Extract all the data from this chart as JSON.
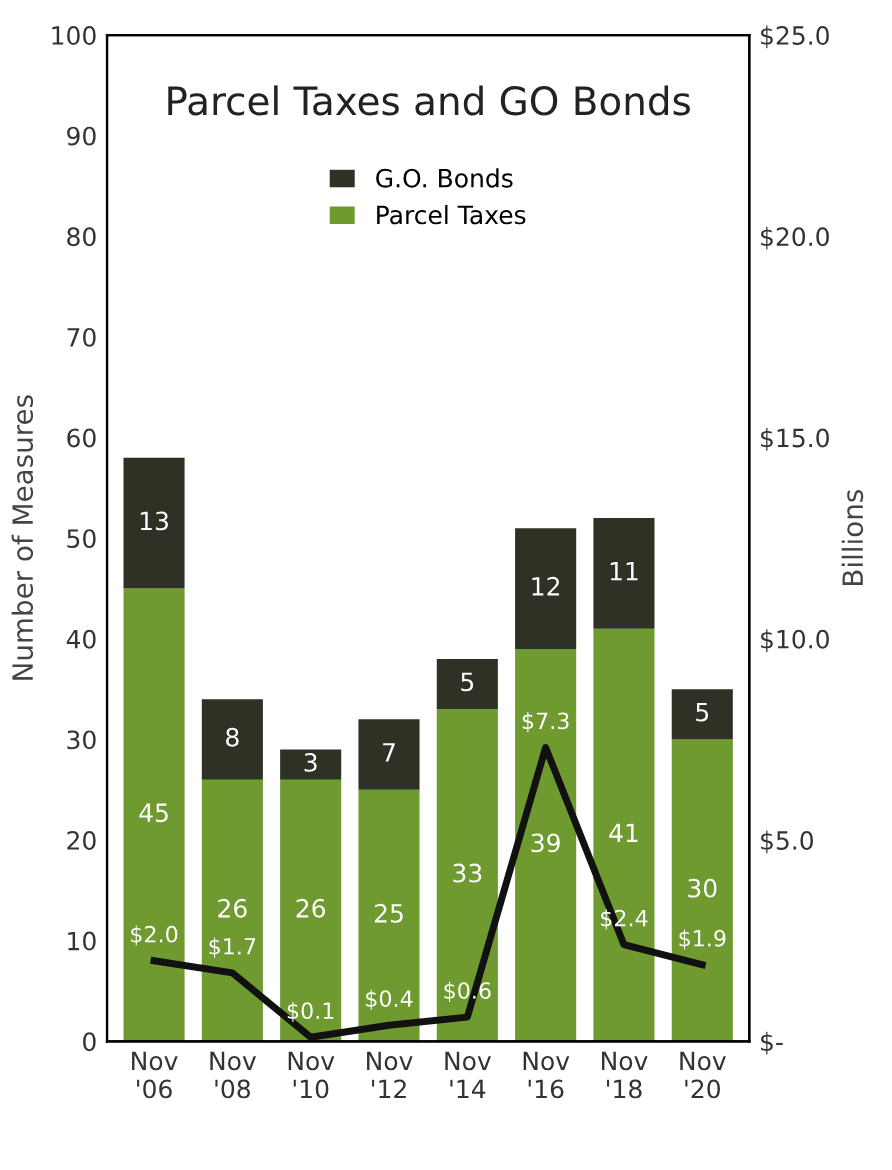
{
  "chart_data": {
    "type": "bar",
    "title": "Parcel Taxes and GO Bonds",
    "ylabel": "Number of Measures",
    "y2label": "Billions",
    "categories": [
      "Nov\n'06",
      "Nov\n'08",
      "Nov\n'10",
      "Nov\n'12",
      "Nov\n'14",
      "Nov\n'16",
      "Nov\n'18",
      "Nov\n'20"
    ],
    "stacked": true,
    "legend": "top",
    "grid": false,
    "ylim": [
      0,
      100
    ],
    "yticks": [
      0,
      10,
      20,
      30,
      40,
      50,
      60,
      70,
      80,
      90,
      100
    ],
    "y2lim": [
      0,
      25
    ],
    "y2ticks": [
      {
        "value": 0,
        "label": "$-"
      },
      {
        "value": 5,
        "label": "$5.0"
      },
      {
        "value": 10,
        "label": "$10.0"
      },
      {
        "value": 15,
        "label": "$15.0"
      },
      {
        "value": 20,
        "label": "$20.0"
      },
      {
        "value": 25,
        "label": "$25.0"
      }
    ],
    "series": [
      {
        "name": "Parcel Taxes",
        "color": "#6f9a2f",
        "values": [
          45,
          26,
          26,
          25,
          33,
          39,
          41,
          30
        ],
        "value_labels": [
          "45",
          "26",
          "26",
          "25",
          "33",
          "39",
          "41",
          "30"
        ]
      },
      {
        "name": "G.O. Bonds",
        "color": "#2d3225",
        "values": [
          13,
          8,
          3,
          7,
          5,
          12,
          11,
          5
        ],
        "value_labels": [
          "13",
          "8",
          "3",
          "7",
          "5",
          "12",
          "11",
          "5"
        ]
      },
      {
        "type": "line",
        "axis": "y2",
        "color": "#111111",
        "values": [
          2.0,
          1.7,
          0.1,
          0.4,
          0.6,
          7.3,
          2.4,
          1.9
        ],
        "value_labels": [
          "$2.0",
          "$1.7",
          "$0.1",
          "$0.4",
          "$0.6",
          "$7.3",
          "$2.4",
          "$1.9"
        ]
      }
    ]
  }
}
